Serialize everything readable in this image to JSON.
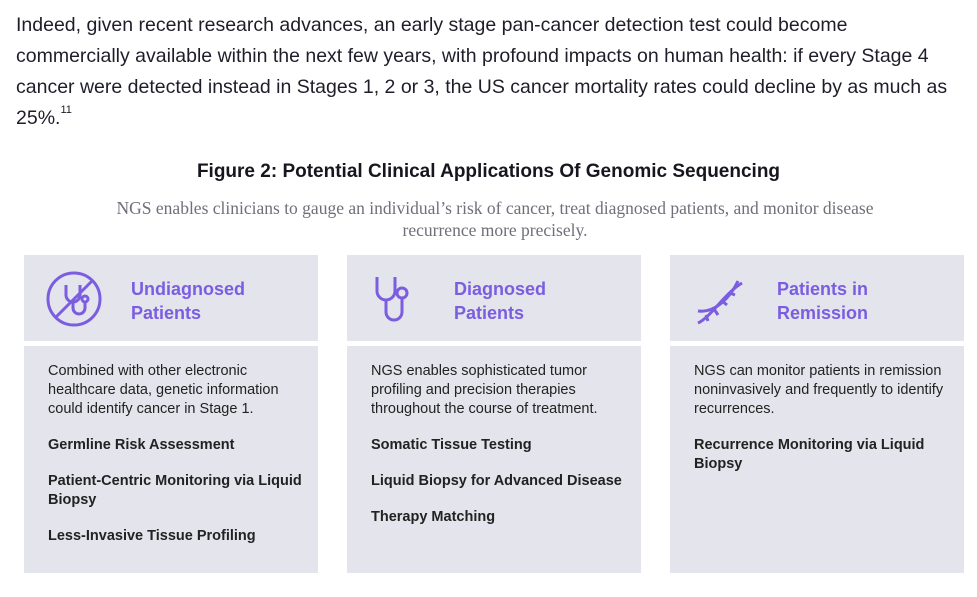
{
  "paragraph": {
    "text": "Indeed, given recent research advances, an early stage pan-cancer detection test could become commercially available within the next few years, with profound impacts on human health: if every Stage 4 cancer were detected instead in Stages 1, 2 or 3, the US cancer mortality rates could decline by as much as 25%.",
    "superscript": "11"
  },
  "figure": {
    "title": "Figure 2: Potential Clinical Applications Of Genomic Sequencing",
    "subtitle": "NGS enables clinicians to gauge an individual’s risk of cancer, treat diagnosed patients, and monitor disease recurrence more precisely.",
    "columns": [
      {
        "heading": [
          "Undiagnosed",
          "Patients"
        ],
        "description": "Combined with other electronic healthcare data, genetic information could identify cancer in Stage 1.",
        "items": [
          "Germline Risk Assessment",
          "Patient-Centric Monitoring via Liquid Biopsy",
          "Less-Invasive Tissue Profiling"
        ]
      },
      {
        "heading": [
          "Diagnosed",
          "Patients"
        ],
        "description": "NGS enables sophisticated tumor profiling and precision therapies throughout the course of treatment.",
        "items": [
          "Somatic Tissue Testing",
          "Liquid Biopsy for Advanced Disease",
          "Therapy Matching"
        ]
      },
      {
        "heading": [
          "Patients in",
          "Remission"
        ],
        "description": "NGS can monitor patients in remission noninvasively and frequently to identify recurrences.",
        "items": [
          "Recurrence Monitoring via Liquid Biopsy"
        ]
      }
    ]
  }
}
